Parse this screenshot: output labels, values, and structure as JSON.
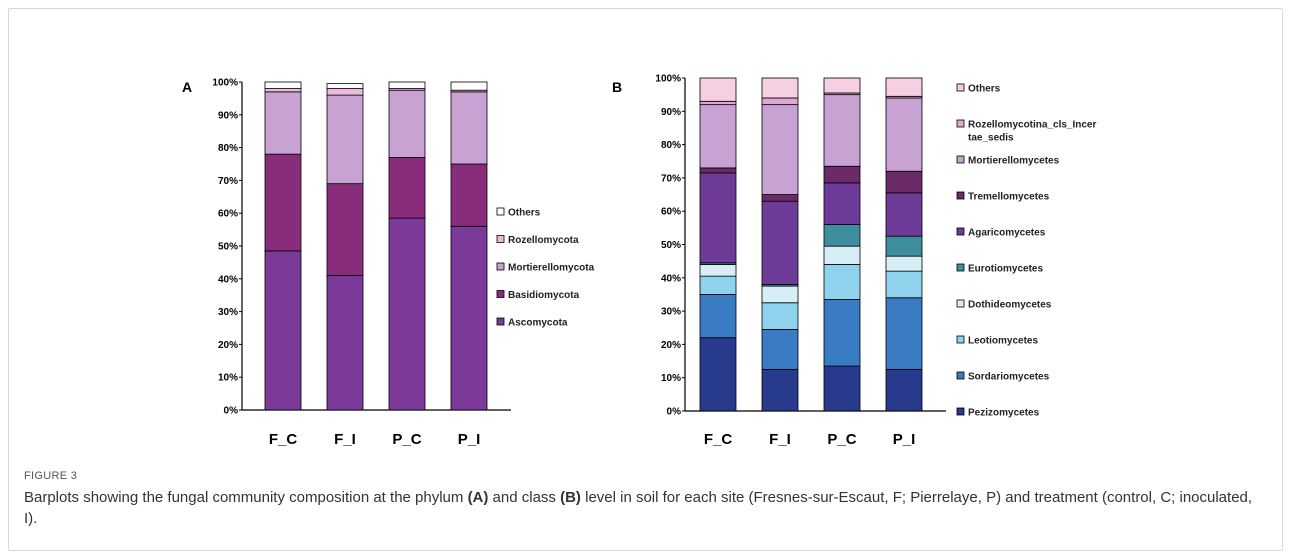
{
  "caption": {
    "label": "FIGURE 3",
    "part1": "Barplots showing the fungal community composition at the phylum ",
    "ref_a": "(A)",
    "part2": " and class ",
    "ref_b": "(B)",
    "part3": " level in soil for each site (Fresnes-sur-Escaut, F; Pierrelaye, P) and treatment (control, C; inoculated, I)."
  },
  "chart_data": [
    {
      "panel": "A",
      "type": "bar",
      "stacked": true,
      "categories": [
        "F_C",
        "F_I",
        "P_C",
        "P_I"
      ],
      "yticks": [
        "0%",
        "10%",
        "20%",
        "30%",
        "40%",
        "50%",
        "60%",
        "70%",
        "80%",
        "90%",
        "100%"
      ],
      "ylim": [
        0,
        100
      ],
      "legend_position": "right",
      "series": [
        {
          "name": "Ascomycota",
          "color": "#7b3a9a",
          "values": [
            48.5,
            41,
            58.5,
            56
          ]
        },
        {
          "name": "Basidiomycota",
          "color": "#8a2c7c",
          "values": [
            29.5,
            28,
            18.5,
            19
          ]
        },
        {
          "name": "Mortierellomycota",
          "color": "#c9a2d4",
          "values": [
            19,
            27,
            20.5,
            22
          ]
        },
        {
          "name": "Rozellomycota",
          "color": "#eab9dc",
          "values": [
            1,
            2,
            0.5,
            0.5
          ]
        },
        {
          "name": "Others",
          "color": "#ffffff",
          "values": [
            2,
            1.5,
            2,
            2.5
          ]
        }
      ]
    },
    {
      "panel": "B",
      "type": "bar",
      "stacked": true,
      "categories": [
        "F_C",
        "F_I",
        "P_C",
        "P_I"
      ],
      "yticks": [
        "0%",
        "10%",
        "20%",
        "30%",
        "40%",
        "50%",
        "60%",
        "70%",
        "80%",
        "90%",
        "100%"
      ],
      "ylim": [
        0,
        100
      ],
      "legend_position": "right",
      "series": [
        {
          "name": "Pezizomycetes",
          "color": "#283a8c",
          "values": [
            22,
            12.5,
            13.5,
            12.5
          ]
        },
        {
          "name": "Sordariomycetes",
          "color": "#3a7cc4",
          "values": [
            13,
            12,
            20,
            21.5
          ]
        },
        {
          "name": "Leotiomycetes",
          "color": "#8fd3ef",
          "values": [
            5.5,
            8,
            10.5,
            8
          ]
        },
        {
          "name": "Dothideomycetes",
          "color": "#d8eef6",
          "values": [
            3.5,
            5,
            5.5,
            4.5
          ]
        },
        {
          "name": "Eurotiomycetes",
          "color": "#3e8ea0",
          "values": [
            0.5,
            0.5,
            6.5,
            6
          ]
        },
        {
          "name": "Agaricomycetes",
          "color": "#6f3b98",
          "values": [
            27,
            25,
            12.5,
            13
          ]
        },
        {
          "name": "Tremellomycetes",
          "color": "#6d2a68",
          "values": [
            1.5,
            2,
            5,
            6.5
          ]
        },
        {
          "name": "Mortierellomycetes",
          "color": "#c9a2d4",
          "values": [
            19,
            27,
            21.5,
            22
          ]
        },
        {
          "name": "Rozellomycotina_cls_Incertae_sedis",
          "label_lines": [
            "Rozellomycotina_cls_Incer",
            "tae_sedis"
          ],
          "color": "#e0a8d0",
          "values": [
            1,
            2,
            0.5,
            0.5
          ]
        },
        {
          "name": "Others",
          "color": "#f7cfe2",
          "values": [
            7,
            6,
            4.5,
            5.5
          ]
        }
      ]
    }
  ]
}
